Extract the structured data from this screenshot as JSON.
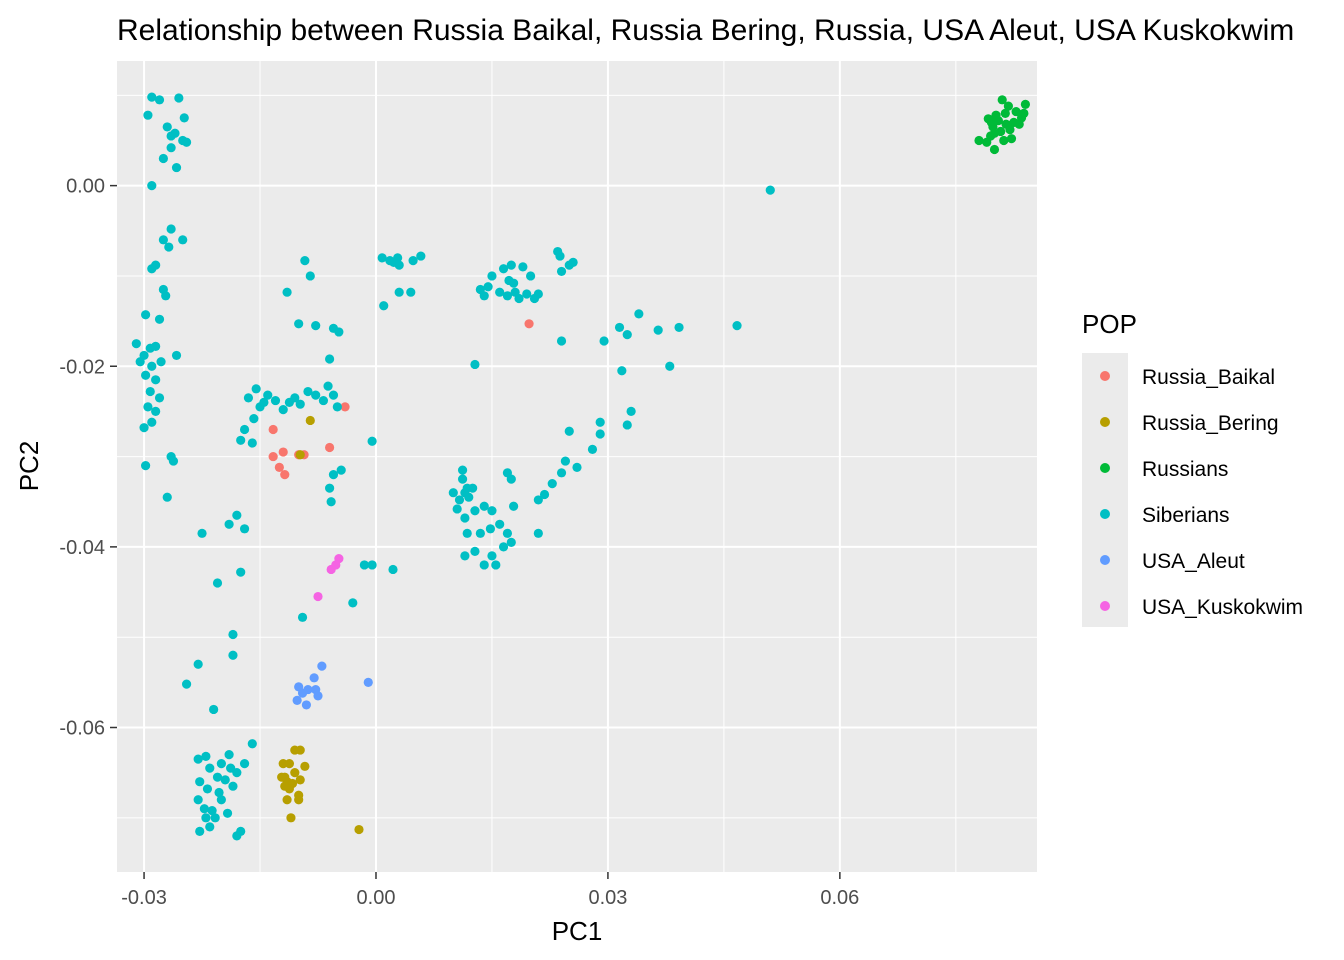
{
  "chart_data": {
    "type": "scatter",
    "title": "Relationship between Russia Baikal, Russia Bering, Russia, USA Aleut, USA Kuskokwim",
    "xlabel": "PC1",
    "ylabel": "PC2",
    "xlim": [
      -0.0335,
      0.0855
    ],
    "ylim": [
      -0.076,
      0.0138
    ],
    "x_ticks": [
      -0.03,
      0.0,
      0.03,
      0.06
    ],
    "x_tick_labels": [
      "-0.03",
      "0.00",
      "0.03",
      "0.06"
    ],
    "y_ticks": [
      0.0,
      -0.02,
      -0.04,
      -0.06
    ],
    "y_tick_labels": [
      "0.00",
      "-0.02",
      "-0.04",
      "-0.06"
    ],
    "grid": true,
    "background": "#ebebeb",
    "legend": {
      "title": "POP",
      "placement": "right"
    },
    "series": [
      {
        "name": "Russia_Baikal",
        "color": "#F8766D",
        "points": [
          [
            0.0198,
            -0.0153
          ],
          [
            -0.004,
            -0.0245
          ],
          [
            -0.006,
            -0.029
          ],
          [
            -0.0133,
            -0.027
          ],
          [
            -0.0133,
            -0.03
          ],
          [
            -0.012,
            -0.0295
          ],
          [
            -0.0125,
            -0.0312
          ],
          [
            -0.0118,
            -0.032
          ],
          [
            -0.01,
            -0.0298
          ],
          [
            -0.0093,
            -0.0298
          ]
        ]
      },
      {
        "name": "Russia_Bering",
        "color": "#B79F00",
        "points": [
          [
            -0.0085,
            -0.026
          ],
          [
            -0.0098,
            -0.0298
          ],
          [
            -0.012,
            -0.064
          ],
          [
            -0.0112,
            -0.064
          ],
          [
            -0.0118,
            -0.0655
          ],
          [
            -0.0105,
            -0.0625
          ],
          [
            -0.0098,
            -0.0625
          ],
          [
            -0.0115,
            -0.066
          ],
          [
            -0.0108,
            -0.0662
          ],
          [
            -0.0092,
            -0.0643
          ],
          [
            -0.0098,
            -0.0658
          ],
          [
            -0.0122,
            -0.0655
          ],
          [
            -0.0112,
            -0.0668
          ],
          [
            -0.01,
            -0.0675
          ],
          [
            -0.0115,
            -0.068
          ],
          [
            -0.01,
            -0.068
          ],
          [
            -0.011,
            -0.07
          ],
          [
            -0.0022,
            -0.0713
          ],
          [
            -0.0118,
            -0.0665
          ],
          [
            -0.0105,
            -0.065
          ]
        ]
      },
      {
        "name": "Russians",
        "color": "#00BA38",
        "points": [
          [
            0.081,
            0.0095
          ],
          [
            0.0818,
            0.0088
          ],
          [
            0.0828,
            0.0082
          ],
          [
            0.084,
            0.009
          ],
          [
            0.0835,
            0.0075
          ],
          [
            0.0825,
            0.007
          ],
          [
            0.0815,
            0.0068
          ],
          [
            0.0805,
            0.0072
          ],
          [
            0.0798,
            0.0065
          ],
          [
            0.0808,
            0.006
          ],
          [
            0.0795,
            0.0055
          ],
          [
            0.079,
            0.0048
          ],
          [
            0.08,
            0.004
          ],
          [
            0.0812,
            0.005
          ],
          [
            0.082,
            0.0062
          ],
          [
            0.0832,
            0.0068
          ],
          [
            0.0802,
            0.0078
          ],
          [
            0.0796,
            0.007
          ],
          [
            0.08,
            0.0058
          ],
          [
            0.0792,
            0.0074
          ],
          [
            0.078,
            0.005
          ],
          [
            0.0838,
            0.008
          ],
          [
            0.0822,
            0.0052
          ],
          [
            0.0814,
            0.008
          ]
        ]
      },
      {
        "name": "Siberians",
        "color": "#00BFC4",
        "points": [
          [
            -0.029,
            0.0098
          ],
          [
            -0.028,
            0.0095
          ],
          [
            -0.0255,
            0.0097
          ],
          [
            -0.0295,
            0.0078
          ],
          [
            -0.027,
            0.0065
          ],
          [
            -0.0248,
            0.0075
          ],
          [
            -0.0265,
            0.0055
          ],
          [
            -0.026,
            0.0058
          ],
          [
            -0.025,
            0.005
          ],
          [
            -0.0245,
            0.0048
          ],
          [
            -0.0265,
            0.0042
          ],
          [
            -0.0275,
            0.003
          ],
          [
            -0.0258,
            0.002
          ],
          [
            -0.029,
            0.0
          ],
          [
            -0.0265,
            -0.0048
          ],
          [
            -0.0275,
            -0.006
          ],
          [
            -0.0268,
            -0.0068
          ],
          [
            -0.025,
            -0.006
          ],
          [
            -0.0285,
            -0.0088
          ],
          [
            -0.029,
            -0.0092
          ],
          [
            -0.0275,
            -0.0115
          ],
          [
            -0.0272,
            -0.0122
          ],
          [
            -0.0298,
            -0.0143
          ],
          [
            -0.028,
            -0.0148
          ],
          [
            -0.031,
            -0.0175
          ],
          [
            -0.03,
            -0.0188
          ],
          [
            -0.0292,
            -0.018
          ],
          [
            -0.0285,
            -0.0178
          ],
          [
            -0.0305,
            -0.0195
          ],
          [
            -0.029,
            -0.02
          ],
          [
            -0.0278,
            -0.0195
          ],
          [
            -0.0258,
            -0.0188
          ],
          [
            -0.0298,
            -0.021
          ],
          [
            -0.0285,
            -0.0215
          ],
          [
            -0.0292,
            -0.0228
          ],
          [
            -0.028,
            -0.0235
          ],
          [
            -0.0295,
            -0.0245
          ],
          [
            -0.0285,
            -0.025
          ],
          [
            -0.029,
            -0.0262
          ],
          [
            -0.03,
            -0.0268
          ],
          [
            -0.0298,
            -0.031
          ],
          [
            -0.0265,
            -0.03
          ],
          [
            -0.0262,
            -0.0305
          ],
          [
            -0.027,
            -0.0345
          ],
          [
            -0.0165,
            -0.0235
          ],
          [
            -0.0155,
            -0.0225
          ],
          [
            -0.015,
            -0.0245
          ],
          [
            -0.0158,
            -0.0258
          ],
          [
            -0.017,
            -0.027
          ],
          [
            -0.016,
            -0.0285
          ],
          [
            -0.0175,
            -0.0282
          ],
          [
            -0.0145,
            -0.024
          ],
          [
            -0.014,
            -0.0232
          ],
          [
            -0.013,
            -0.0238
          ],
          [
            -0.012,
            -0.0248
          ],
          [
            -0.0112,
            -0.024
          ],
          [
            -0.0105,
            -0.0235
          ],
          [
            -0.0098,
            -0.0242
          ],
          [
            -0.0088,
            -0.0228
          ],
          [
            -0.0078,
            -0.0232
          ],
          [
            -0.0062,
            -0.0222
          ],
          [
            -0.0068,
            -0.0238
          ],
          [
            -0.0055,
            -0.0232
          ],
          [
            -0.005,
            -0.0245
          ],
          [
            -0.0115,
            -0.0118
          ],
          [
            -0.0092,
            -0.0083
          ],
          [
            -0.0085,
            -0.01
          ],
          [
            -0.01,
            -0.0153
          ],
          [
            -0.0078,
            -0.0155
          ],
          [
            -0.0055,
            -0.0158
          ],
          [
            -0.0048,
            -0.0162
          ],
          [
            -0.006,
            -0.0192
          ],
          [
            -0.0045,
            -0.0315
          ],
          [
            -0.0055,
            -0.032
          ],
          [
            -0.006,
            -0.0335
          ],
          [
            -0.0058,
            -0.035
          ],
          [
            -0.0005,
            -0.0283
          ],
          [
            0.0008,
            -0.008
          ],
          [
            0.0018,
            -0.0083
          ],
          [
            0.0028,
            -0.008
          ],
          [
            0.003,
            -0.0088
          ],
          [
            0.0023,
            -0.0085
          ],
          [
            0.0048,
            -0.0083
          ],
          [
            0.0058,
            -0.0078
          ],
          [
            0.001,
            -0.0133
          ],
          [
            0.003,
            -0.0118
          ],
          [
            0.0045,
            -0.0118
          ],
          [
            0.0165,
            -0.0092
          ],
          [
            0.0175,
            -0.0088
          ],
          [
            0.019,
            -0.009
          ],
          [
            0.02,
            -0.01
          ],
          [
            0.0235,
            -0.0073
          ],
          [
            0.0238,
            -0.0078
          ],
          [
            0.025,
            -0.0088
          ],
          [
            0.0255,
            -0.0085
          ],
          [
            0.024,
            -0.0095
          ],
          [
            0.015,
            -0.01
          ],
          [
            0.0172,
            -0.0105
          ],
          [
            0.0178,
            -0.0108
          ],
          [
            0.0135,
            -0.0115
          ],
          [
            0.0145,
            -0.0112
          ],
          [
            0.014,
            -0.0122
          ],
          [
            0.016,
            -0.0118
          ],
          [
            0.017,
            -0.0122
          ],
          [
            0.0185,
            -0.0125
          ],
          [
            0.0205,
            -0.0125
          ],
          [
            0.021,
            -0.012
          ],
          [
            0.0195,
            -0.012
          ],
          [
            0.018,
            -0.0118
          ],
          [
            0.0128,
            -0.0198
          ],
          [
            0.024,
            -0.0172
          ],
          [
            0.0295,
            -0.0172
          ],
          [
            0.034,
            -0.0142
          ],
          [
            0.0315,
            -0.0157
          ],
          [
            0.0325,
            -0.0165
          ],
          [
            0.0365,
            -0.016
          ],
          [
            0.0392,
            -0.0157
          ],
          [
            0.038,
            -0.02
          ],
          [
            0.0318,
            -0.0205
          ],
          [
            0.0467,
            -0.0155
          ],
          [
            0.051,
            -0.0005
          ],
          [
            0.033,
            -0.025
          ],
          [
            0.0325,
            -0.0265
          ],
          [
            0.029,
            -0.0262
          ],
          [
            0.029,
            -0.0275
          ],
          [
            0.028,
            -0.0292
          ],
          [
            0.025,
            -0.0272
          ],
          [
            0.0245,
            -0.0305
          ],
          [
            0.026,
            -0.0312
          ],
          [
            0.024,
            -0.0318
          ],
          [
            0.0228,
            -0.033
          ],
          [
            0.0218,
            -0.0342
          ],
          [
            0.021,
            -0.0348
          ],
          [
            0.021,
            -0.0385
          ],
          [
            0.01,
            -0.034
          ],
          [
            0.0108,
            -0.0348
          ],
          [
            0.0115,
            -0.034
          ],
          [
            0.012,
            -0.0345
          ],
          [
            0.0112,
            -0.0325
          ],
          [
            0.0118,
            -0.0335
          ],
          [
            0.0125,
            -0.0335
          ],
          [
            0.0105,
            -0.0358
          ],
          [
            0.0115,
            -0.0368
          ],
          [
            0.0128,
            -0.036
          ],
          [
            0.014,
            -0.0355
          ],
          [
            0.015,
            -0.036
          ],
          [
            0.0148,
            -0.038
          ],
          [
            0.0135,
            -0.0385
          ],
          [
            0.0118,
            -0.0385
          ],
          [
            0.016,
            -0.0375
          ],
          [
            0.017,
            -0.0385
          ],
          [
            0.0175,
            -0.0395
          ],
          [
            0.0165,
            -0.04
          ],
          [
            0.015,
            -0.041
          ],
          [
            0.014,
            -0.042
          ],
          [
            0.0155,
            -0.042
          ],
          [
            0.0128,
            -0.0405
          ],
          [
            0.0115,
            -0.041
          ],
          [
            0.0175,
            -0.0325
          ],
          [
            0.017,
            -0.0318
          ],
          [
            0.0178,
            -0.0355
          ],
          [
            0.0112,
            -0.0315
          ],
          [
            -0.0225,
            -0.0385
          ],
          [
            -0.019,
            -0.0375
          ],
          [
            -0.018,
            -0.0365
          ],
          [
            -0.017,
            -0.038
          ],
          [
            -0.0205,
            -0.044
          ],
          [
            -0.0175,
            -0.0428
          ],
          [
            -0.0015,
            -0.042
          ],
          [
            -0.0005,
            -0.042
          ],
          [
            0.0022,
            -0.0425
          ],
          [
            -0.003,
            -0.0462
          ],
          [
            -0.0095,
            -0.0478
          ],
          [
            -0.0185,
            -0.0497
          ],
          [
            -0.0185,
            -0.052
          ],
          [
            -0.023,
            -0.053
          ],
          [
            -0.0245,
            -0.0552
          ],
          [
            -0.021,
            -0.058
          ],
          [
            -0.016,
            -0.0618
          ],
          [
            -0.023,
            -0.0635
          ],
          [
            -0.022,
            -0.0632
          ],
          [
            -0.0215,
            -0.0645
          ],
          [
            -0.02,
            -0.064
          ],
          [
            -0.019,
            -0.063
          ],
          [
            -0.018,
            -0.065
          ],
          [
            -0.017,
            -0.064
          ],
          [
            -0.0228,
            -0.066
          ],
          [
            -0.0218,
            -0.0668
          ],
          [
            -0.0205,
            -0.0655
          ],
          [
            -0.0195,
            -0.0658
          ],
          [
            -0.0185,
            -0.0665
          ],
          [
            -0.023,
            -0.068
          ],
          [
            -0.0222,
            -0.069
          ],
          [
            -0.0212,
            -0.0692
          ],
          [
            -0.02,
            -0.068
          ],
          [
            -0.0208,
            -0.07
          ],
          [
            -0.0215,
            -0.071
          ],
          [
            -0.0228,
            -0.0715
          ],
          [
            -0.0192,
            -0.0695
          ],
          [
            -0.018,
            -0.072
          ],
          [
            -0.0175,
            -0.0715
          ],
          [
            -0.022,
            -0.07
          ],
          [
            -0.0203,
            -0.0672
          ],
          [
            -0.0188,
            -0.0645
          ]
        ]
      },
      {
        "name": "USA_Aleut",
        "color": "#619CFF",
        "points": [
          [
            -0.001,
            -0.055
          ],
          [
            -0.007,
            -0.0532
          ],
          [
            -0.008,
            -0.0545
          ],
          [
            -0.01,
            -0.0555
          ],
          [
            -0.0095,
            -0.0562
          ],
          [
            -0.0088,
            -0.0558
          ],
          [
            -0.0078,
            -0.0558
          ],
          [
            -0.0075,
            -0.0565
          ],
          [
            -0.009,
            -0.0575
          ],
          [
            -0.0102,
            -0.057
          ]
        ]
      },
      {
        "name": "USA_Kuskokwim",
        "color": "#F564E3",
        "points": [
          [
            -0.0048,
            -0.0413
          ],
          [
            -0.0058,
            -0.0425
          ],
          [
            -0.0052,
            -0.042
          ],
          [
            -0.0075,
            -0.0455
          ]
        ]
      }
    ]
  }
}
